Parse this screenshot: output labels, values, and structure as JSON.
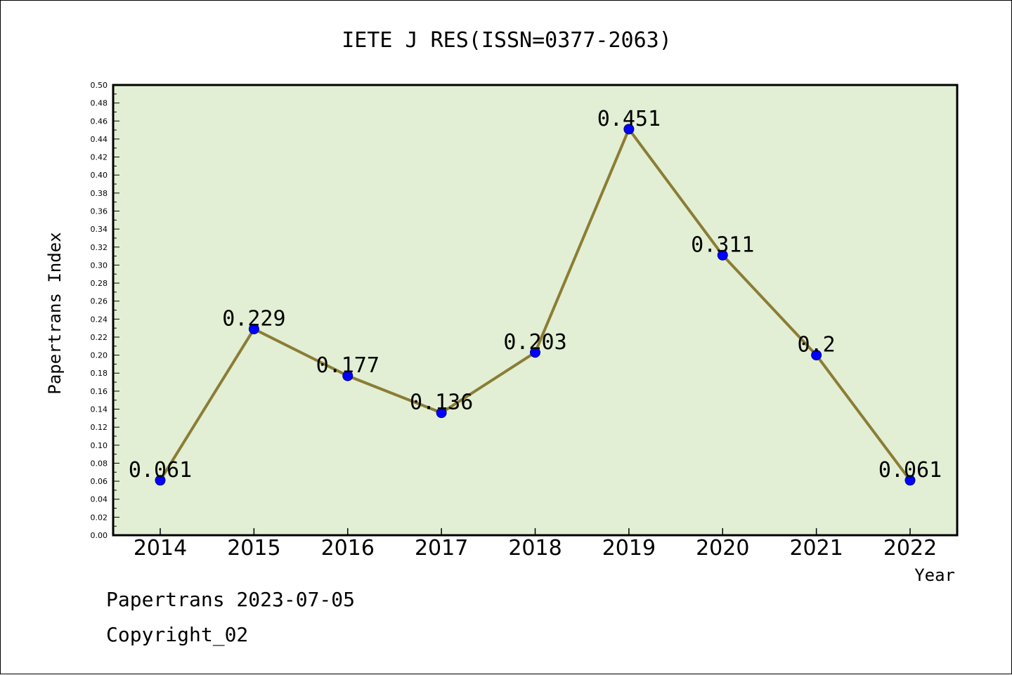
{
  "chart_data": {
    "type": "line",
    "title": "IETE J RES(ISSN=0377-2063)",
    "xlabel": "Year",
    "ylabel": "Papertrans Index",
    "categories": [
      "2014",
      "2015",
      "2016",
      "2017",
      "2018",
      "2019",
      "2020",
      "2021",
      "2022"
    ],
    "series": [
      {
        "values": [
          0.061,
          0.229,
          0.177,
          0.136,
          0.203,
          0.451,
          0.311,
          0.2,
          0.061
        ],
        "data_labels": [
          "0.061",
          "0.229",
          "0.177",
          "0.136",
          "0.203",
          "0.451",
          "0.311",
          "0.2",
          "0.061"
        ]
      }
    ],
    "ylim": [
      0,
      0.5
    ],
    "ytick_labels": [
      "0.00",
      "0.02",
      "0.04",
      "0.06",
      "0.08",
      "0.10",
      "0.12",
      "0.14",
      "0.16",
      "0.18",
      "0.20",
      "0.22",
      "0.24",
      "0.26",
      "0.28",
      "0.30",
      "0.32",
      "0.34",
      "0.36",
      "0.38",
      "0.40",
      "0.42",
      "0.44",
      "0.46",
      "0.48",
      "0.50"
    ],
    "grid": false,
    "colors": {
      "plot_background": "#e2efd4",
      "line": "#8b7d35",
      "marker": "#0000ff"
    }
  },
  "footer": {
    "line1": "Papertrans 2023-07-05",
    "line2": "Copyright_02"
  }
}
